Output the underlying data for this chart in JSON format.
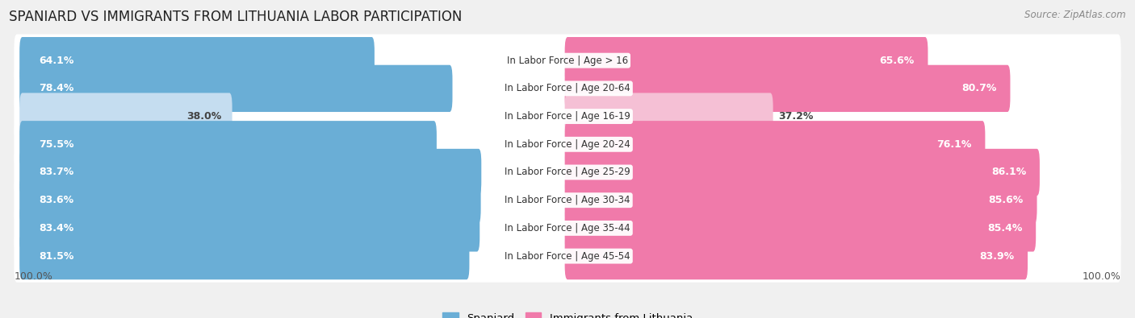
{
  "title": "SPANIARD VS IMMIGRANTS FROM LITHUANIA LABOR PARTICIPATION",
  "source": "Source: ZipAtlas.com",
  "categories": [
    "In Labor Force | Age > 16",
    "In Labor Force | Age 20-64",
    "In Labor Force | Age 16-19",
    "In Labor Force | Age 20-24",
    "In Labor Force | Age 25-29",
    "In Labor Force | Age 30-34",
    "In Labor Force | Age 35-44",
    "In Labor Force | Age 45-54"
  ],
  "spaniard_values": [
    64.1,
    78.4,
    38.0,
    75.5,
    83.7,
    83.6,
    83.4,
    81.5
  ],
  "lithuania_values": [
    65.6,
    80.7,
    37.2,
    76.1,
    86.1,
    85.6,
    85.4,
    83.9
  ],
  "spaniard_color_full": "#6aaed6",
  "spaniard_color_light": "#c5ddf0",
  "lithuania_color_full": "#f07aaa",
  "lithuania_color_light": "#f5c0d5",
  "background_color": "#f0f0f0",
  "row_bg_color": "#e8e8e8",
  "row_bg_inner": "#ffffff",
  "max_value": 100.0,
  "legend_spaniard": "Spaniard",
  "legend_lithuania": "Immigrants from Lithuania",
  "bar_height": 0.68,
  "title_fontsize": 12,
  "label_fontsize": 9,
  "category_fontsize": 8.5,
  "legend_fontsize": 9.5,
  "axis_label_fontsize": 9
}
